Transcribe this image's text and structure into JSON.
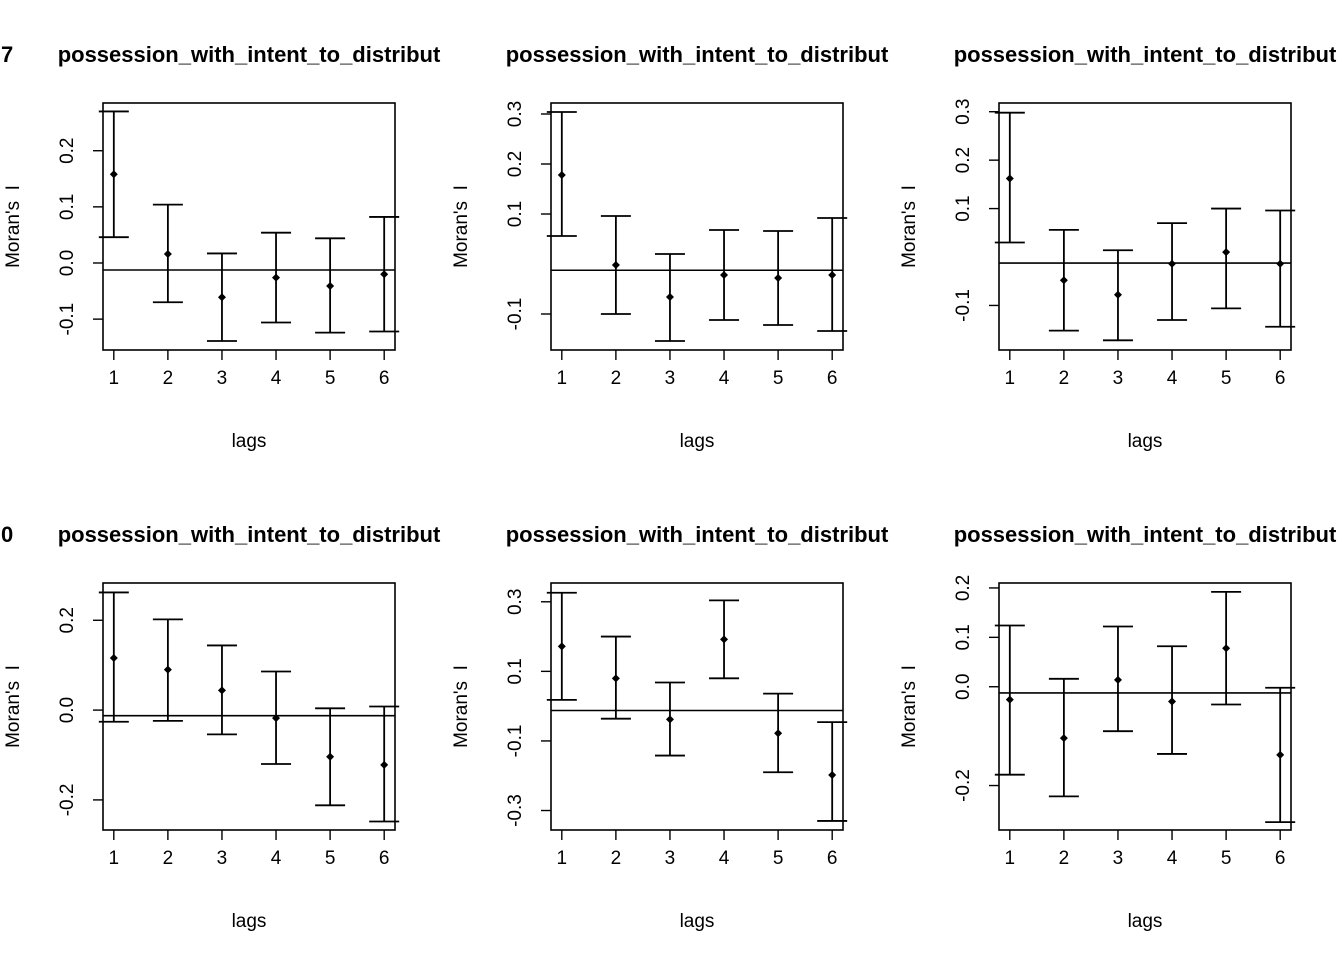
{
  "chart_data": [
    {
      "type": "errorbar",
      "title": "possession_with_intent_to_distribut",
      "title_prefix": "7",
      "xlabel": "lags",
      "ylabel": "Moran's  I",
      "xlim": [
        0.8,
        6.2
      ],
      "ylim": [
        -0.155,
        0.285
      ],
      "xticks": [
        1,
        2,
        3,
        4,
        5,
        6
      ],
      "yticks": [
        -0.1,
        0.0,
        0.1,
        0.2
      ],
      "ytick_labels": [
        "-0.1",
        "0.0",
        "0.1",
        "0.2"
      ],
      "reference_line": -0.0125,
      "lags": [
        1,
        2,
        3,
        4,
        5,
        6
      ],
      "moran_i": [
        0.158,
        0.016,
        -0.061,
        -0.026,
        -0.041,
        -0.02
      ],
      "lower": [
        0.046,
        -0.07,
        -0.139,
        -0.106,
        -0.124,
        -0.122
      ],
      "upper": [
        0.27,
        0.104,
        0.017,
        0.054,
        0.044,
        0.082
      ]
    },
    {
      "type": "errorbar",
      "title": "possession_with_intent_to_distribut",
      "title_prefix": "",
      "xlabel": "lags",
      "ylabel": "Moran's  I",
      "xlim": [
        0.8,
        6.2
      ],
      "ylim": [
        -0.172,
        0.322
      ],
      "xticks": [
        1,
        2,
        3,
        4,
        5,
        6
      ],
      "yticks": [
        -0.1,
        0.1,
        0.2,
        0.3
      ],
      "ytick_labels": [
        "-0.1",
        "0.1",
        "0.2",
        "0.3"
      ],
      "reference_line": -0.0125,
      "lags": [
        1,
        2,
        3,
        4,
        5,
        6
      ],
      "moran_i": [
        0.178,
        -0.002,
        -0.066,
        -0.022,
        -0.028,
        -0.022
      ],
      "lower": [
        0.056,
        -0.1,
        -0.154,
        -0.112,
        -0.122,
        -0.134
      ],
      "upper": [
        0.304,
        0.096,
        0.02,
        0.068,
        0.066,
        0.092
      ]
    },
    {
      "type": "errorbar",
      "title": "possession_with_intent_to_distribut",
      "title_prefix": "",
      "xlabel": "lags",
      "ylabel": "Moran's  I",
      "xlim": [
        0.8,
        6.2
      ],
      "ylim": [
        -0.192,
        0.318
      ],
      "xticks": [
        1,
        2,
        3,
        4,
        5,
        6
      ],
      "yticks": [
        -0.1,
        0.1,
        0.2,
        0.3
      ],
      "ytick_labels": [
        "-0.1",
        "0.1",
        "0.2",
        "0.3"
      ],
      "reference_line": -0.0125,
      "lags": [
        1,
        2,
        3,
        4,
        5,
        6
      ],
      "moran_i": [
        0.162,
        -0.048,
        -0.078,
        -0.014,
        0.01,
        -0.014
      ],
      "lower": [
        0.03,
        -0.152,
        -0.172,
        -0.13,
        -0.106,
        -0.144
      ],
      "upper": [
        0.298,
        0.056,
        0.014,
        0.07,
        0.1,
        0.096
      ]
    },
    {
      "type": "errorbar",
      "title": "possession_with_intent_to_distribut",
      "title_prefix": "0",
      "xlabel": "lags",
      "ylabel": "Moran's  I",
      "xlim": [
        0.8,
        6.2
      ],
      "ylim": [
        -0.267,
        0.283
      ],
      "xticks": [
        1,
        2,
        3,
        4,
        5,
        6
      ],
      "yticks": [
        -0.2,
        0.0,
        0.2
      ],
      "ytick_labels": [
        "-0.2",
        "0.0",
        "0.2"
      ],
      "reference_line": -0.0125,
      "lags": [
        1,
        2,
        3,
        4,
        5,
        6
      ],
      "moran_i": [
        0.116,
        0.09,
        0.044,
        -0.018,
        -0.104,
        -0.122
      ],
      "lower": [
        -0.026,
        -0.024,
        -0.054,
        -0.12,
        -0.212,
        -0.248
      ],
      "upper": [
        0.262,
        0.202,
        0.144,
        0.086,
        0.004,
        0.008
      ]
    },
    {
      "type": "errorbar",
      "title": "possession_with_intent_to_distribut",
      "title_prefix": "",
      "xlabel": "lags",
      "ylabel": "Moran's  I",
      "xlim": [
        0.8,
        6.2
      ],
      "ylim": [
        -0.356,
        0.354
      ],
      "xticks": [
        1,
        2,
        3,
        4,
        5,
        6
      ],
      "yticks": [
        -0.3,
        -0.1,
        0.1,
        0.3
      ],
      "ytick_labels": [
        "-0.3",
        "-0.1",
        "0.1",
        "0.3"
      ],
      "reference_line": -0.0125,
      "lags": [
        1,
        2,
        3,
        4,
        5,
        6
      ],
      "moran_i": [
        0.172,
        0.08,
        -0.038,
        0.192,
        -0.078,
        -0.198
      ],
      "lower": [
        0.018,
        -0.036,
        -0.142,
        0.08,
        -0.19,
        -0.33
      ],
      "upper": [
        0.326,
        0.2,
        0.068,
        0.304,
        0.036,
        -0.046
      ]
    },
    {
      "type": "errorbar",
      "title": "possession_with_intent_to_distribut",
      "title_prefix": "",
      "xlabel": "lags",
      "ylabel": "Moran's  I",
      "xlim": [
        0.8,
        6.2
      ],
      "ylim": [
        -0.29,
        0.21
      ],
      "xticks": [
        1,
        2,
        3,
        4,
        5,
        6
      ],
      "yticks": [
        -0.2,
        0.0,
        0.1,
        0.2
      ],
      "ytick_labels": [
        "-0.2",
        "0.0",
        "0.1",
        "0.2"
      ],
      "reference_line": -0.0125,
      "lags": [
        1,
        2,
        3,
        4,
        5,
        6
      ],
      "moran_i": [
        -0.026,
        -0.104,
        0.014,
        -0.03,
        0.078,
        -0.138
      ],
      "lower": [
        -0.178,
        -0.222,
        -0.09,
        -0.136,
        -0.036,
        -0.274
      ],
      "upper": [
        0.124,
        0.016,
        0.122,
        0.082,
        0.192,
        -0.002
      ]
    }
  ]
}
